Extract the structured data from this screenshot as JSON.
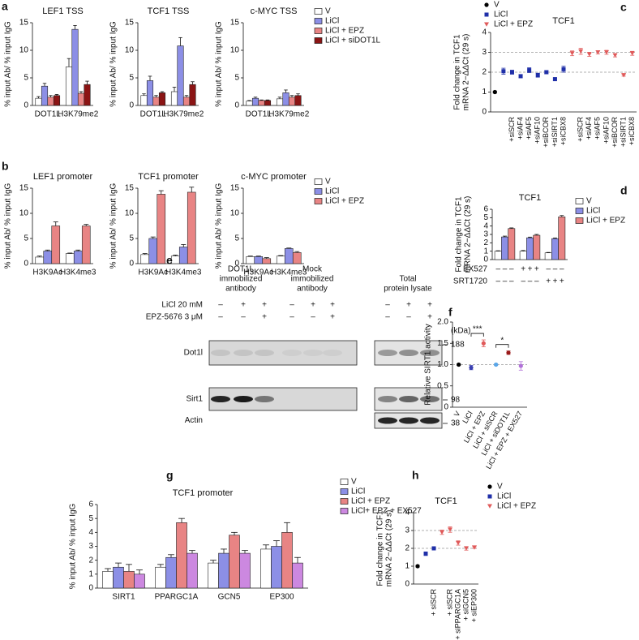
{
  "chart_data": [
    {
      "type": "bar",
      "panel": "a",
      "title": "LEF1 TSS",
      "ylabel": "% input Ab/ % input IgG",
      "ylim": [
        0,
        15
      ],
      "yticks": [
        0,
        5,
        10,
        15
      ],
      "categories": [
        "DOT1L",
        "H3K79me2"
      ],
      "series": [
        {
          "color": "#ffffff",
          "values": [
            1.3,
            7.0
          ],
          "errors": [
            0.3,
            1.5
          ]
        },
        {
          "color": "#8c8fe6",
          "values": [
            3.5,
            13.8
          ],
          "errors": [
            0.5,
            0.7
          ]
        },
        {
          "color": "#e88484",
          "values": [
            1.5,
            2.2
          ],
          "errors": [
            0.3,
            0.3
          ]
        },
        {
          "color": "#8b1414",
          "values": [
            1.8,
            3.8
          ],
          "errors": [
            0.2,
            0.6
          ]
        }
      ]
    },
    {
      "type": "bar",
      "title": "TCF1 TSS",
      "ylabel": "% input Ab/ % input IgG",
      "ylim": [
        0,
        15
      ],
      "yticks": [
        0,
        5,
        10,
        15
      ],
      "categories": [
        "DOT1L",
        "H3K79me2"
      ],
      "series": [
        {
          "color": "#ffffff",
          "values": [
            1.8,
            2.5
          ],
          "errors": [
            0.3,
            0.8
          ]
        },
        {
          "color": "#8c8fe6",
          "values": [
            4.5,
            10.8
          ],
          "errors": [
            0.8,
            1.5
          ]
        },
        {
          "color": "#e88484",
          "values": [
            1.5,
            1.5
          ],
          "errors": [
            0.3,
            0.3
          ]
        },
        {
          "color": "#8b1414",
          "values": [
            2.3,
            3.8
          ],
          "errors": [
            0.2,
            0.5
          ]
        }
      ]
    },
    {
      "type": "bar",
      "title": "c-MYC TSS",
      "ylabel": "% input Ab/ % input IgG",
      "ylim": [
        0,
        15
      ],
      "yticks": [
        0,
        5,
        10,
        15
      ],
      "categories": [
        "DOT1L",
        "H3K79me2"
      ],
      "series": [
        {
          "name": "V",
          "color": "#ffffff",
          "values": [
            0.8,
            1.2
          ],
          "errors": [
            0.1,
            0.3
          ]
        },
        {
          "name": "LiCl",
          "color": "#8c8fe6",
          "values": [
            1.3,
            2.3
          ],
          "errors": [
            0.2,
            0.5
          ]
        },
        {
          "name": "LiCl + EPZ",
          "color": "#e88484",
          "values": [
            0.9,
            1.5
          ],
          "errors": [
            0.1,
            0.3
          ]
        },
        {
          "name": "LiCl + siDOT1L",
          "color": "#8b1414",
          "values": [
            0.9,
            1.8
          ],
          "errors": [
            0.1,
            0.3
          ]
        }
      ]
    },
    {
      "type": "bar",
      "panel": "b",
      "title": "LEF1 promoter",
      "ylabel": "% input Ab/ % input IgG",
      "ylim": [
        0,
        15
      ],
      "yticks": [
        0,
        5,
        10,
        15
      ],
      "categories": [
        "H3K9Ac",
        "H3K4me3"
      ],
      "series": [
        {
          "color": "#ffffff",
          "values": [
            1.3,
            2.0
          ],
          "errors": [
            0.2,
            0.1
          ]
        },
        {
          "color": "#8c8fe6",
          "values": [
            2.5,
            2.5
          ],
          "errors": [
            0.2,
            0.2
          ]
        },
        {
          "color": "#e88484",
          "values": [
            7.5,
            7.5
          ],
          "errors": [
            0.8,
            0.3
          ]
        }
      ]
    },
    {
      "type": "bar",
      "title": "TCF1 promoter",
      "ylabel": "% input Ab/ % input IgG",
      "ylim": [
        0,
        15
      ],
      "yticks": [
        0,
        5,
        10,
        15
      ],
      "categories": [
        "H3K9Ac",
        "H3K4me3"
      ],
      "series": [
        {
          "color": "#ffffff",
          "values": [
            1.8,
            1.5
          ],
          "errors": [
            0.2,
            0.2
          ]
        },
        {
          "color": "#8c8fe6",
          "values": [
            5.0,
            3.3
          ],
          "errors": [
            0.3,
            0.5
          ]
        },
        {
          "color": "#e88484",
          "values": [
            13.8,
            14.2
          ],
          "errors": [
            0.7,
            1.0
          ]
        }
      ]
    },
    {
      "type": "bar",
      "title": "c-MYC promoter",
      "ylabel": "% input Ab/ % input IgG",
      "ylim": [
        0,
        15
      ],
      "yticks": [
        0,
        5,
        10,
        15
      ],
      "categories": [
        "H3K9Ac",
        "H3K4me3"
      ],
      "series": [
        {
          "name": "V",
          "color": "#ffffff",
          "values": [
            1.4,
            1.5
          ],
          "errors": [
            0.1,
            0.1
          ]
        },
        {
          "name": "LiCl",
          "color": "#8c8fe6",
          "values": [
            1.4,
            3.0
          ],
          "errors": [
            0.1,
            0.1
          ]
        },
        {
          "name": "LiCl + EPZ",
          "color": "#e88484",
          "values": [
            1.0,
            2.2
          ],
          "errors": [
            0.2,
            0.2
          ]
        }
      ]
    },
    {
      "type": "dot",
      "panel": "c",
      "title": "TCF1",
      "ylabel": [
        "Fold change in TCF1",
        "mRNA 2−ΔΔCt (29 s)"
      ],
      "ylim": [
        0,
        4
      ],
      "yticks": [
        0,
        1,
        2,
        3,
        4
      ],
      "reference_lines": [
        2,
        3
      ],
      "categories": [
        null,
        null,
        "+siSCR",
        "+siAF4",
        "+siAF5",
        "+siAF10",
        "+siBCOR",
        "+siSIRT1",
        "+siCBX8",
        null,
        "+siSCR",
        "+siAF4",
        "+siAF5",
        "+siAF10",
        "+siBCOR",
        "+siSIRT1",
        "+siCBX8"
      ],
      "series": [
        {
          "name": "V",
          "color": "#000000",
          "marker": "circle",
          "values": [
            1.0,
            null,
            null,
            null,
            null,
            null,
            null,
            null,
            null,
            null,
            null,
            null,
            null,
            null,
            null,
            null,
            null
          ],
          "errors": [
            0.05,
            null,
            null,
            null,
            null,
            null,
            null,
            null,
            null,
            null,
            null,
            null,
            null,
            null,
            null,
            null,
            null
          ]
        },
        {
          "name": "LiCl",
          "color": "#1f2fa8",
          "marker": "square",
          "values": [
            null,
            2.05,
            2.0,
            1.8,
            2.1,
            1.85,
            2.0,
            1.65,
            2.15,
            null,
            null,
            null,
            null,
            null,
            null,
            null,
            null
          ],
          "errors": [
            null,
            0.15,
            0.1,
            0.08,
            0.12,
            0.1,
            0.08,
            0.06,
            0.15,
            null,
            null,
            null,
            null,
            null,
            null,
            null,
            null
          ]
        },
        {
          "name": "LiCl + EPZ",
          "color": "#e05a5a",
          "marker": "triangle",
          "values": [
            null,
            null,
            null,
            null,
            null,
            null,
            null,
            null,
            null,
            2.95,
            3.05,
            2.9,
            3.0,
            3.0,
            2.85,
            1.85,
            2.95
          ],
          "errors": [
            null,
            null,
            null,
            null,
            null,
            null,
            null,
            null,
            null,
            0.12,
            0.15,
            0.1,
            0.08,
            0.1,
            0.08,
            0.05,
            0.1
          ]
        }
      ]
    },
    {
      "type": "bar",
      "panel": "d",
      "title": "TCF1",
      "ylabel": [
        "Fold change in TCF1",
        "mRNA 2−ΔΔCt (29 s)"
      ],
      "ylim": [
        0,
        6
      ],
      "yticks": [
        0,
        1,
        2,
        3,
        4,
        5,
        6
      ],
      "categories": [
        null,
        null,
        null
      ],
      "series": [
        {
          "name": "V",
          "color": "#ffffff",
          "values": [
            1.0,
            1.0,
            0.8
          ],
          "errors": [
            0.05,
            0.08,
            0.05
          ]
        },
        {
          "name": "LiCl",
          "color": "#8c8fe6",
          "values": [
            2.7,
            2.6,
            2.5
          ],
          "errors": [
            0.1,
            0.08,
            0.08
          ]
        },
        {
          "name": "LiCl + EPZ",
          "color": "#e88484",
          "values": [
            3.7,
            2.9,
            5.1
          ],
          "errors": [
            0.08,
            0.1,
            0.15
          ]
        }
      ],
      "conditions": [
        {
          "name": "EX527",
          "values": [
            "–",
            "–",
            "–",
            "+",
            "+",
            "+",
            "–",
            "–",
            "–"
          ]
        },
        {
          "name": "SRT1720",
          "values": [
            "–",
            "–",
            "–",
            "–",
            "–",
            "–",
            "+",
            "+",
            "+"
          ]
        }
      ]
    },
    {
      "type": "blot",
      "panel": "e",
      "groups": [
        [
          "DOT1L",
          "immobilized",
          "antibody"
        ],
        [
          "Mock",
          "immobilized",
          "antibody"
        ],
        [
          "Total",
          "protein lysate"
        ]
      ],
      "treatments": [
        {
          "name": "LiCl 20 mM",
          "signs": [
            "–",
            "+",
            "+",
            "–",
            "+",
            "+",
            "–",
            "+",
            "+"
          ]
        },
        {
          "name": "EPZ-5676 3 μM",
          "signs": [
            "–",
            "–",
            "+",
            "–",
            "–",
            "+",
            "–",
            "–",
            "+"
          ]
        }
      ],
      "unit": "(kDa)",
      "bands": [
        "Dot1l",
        "Sirt1",
        "Actin"
      ],
      "markers": [
        188,
        98,
        38
      ]
    },
    {
      "type": "dot",
      "panel": "f",
      "ylabel": "Relative SIRT1 activity",
      "ylim": [
        0,
        2
      ],
      "yticks": [
        0,
        0.5,
        {
          "value": 1,
          "label": "1.0"
        },
        1.5,
        {
          "value": 2,
          "label": "2.0"
        }
      ],
      "reference_lines": [
        1
      ],
      "categories": [
        "V",
        "LiCl",
        "LiCl + EPZ",
        "LiCl + siSCR",
        "LiCl + siDOT1L",
        "LiCl + EPZ + EX527"
      ],
      "values": [
        1.0,
        0.93,
        1.5,
        1.0,
        1.28,
        0.97
      ],
      "errors": [
        0.02,
        0.05,
        0.08,
        0.02,
        0.04,
        0.1
      ],
      "colors": [
        "#000000",
        "#3a3fb0",
        "#e05a5a",
        "#5aa6e8",
        "#9a1a1a",
        "#b070d8"
      ],
      "annotations": [
        {
          "text": "***",
          "between": [
            1,
            2
          ]
        },
        {
          "text": "*",
          "between": [
            3,
            4
          ]
        }
      ]
    },
    {
      "type": "bar",
      "panel": "g",
      "title": "TCF1 promoter",
      "ylabel": "% input Ab/ % input IgG",
      "ylim": [
        0,
        6
      ],
      "yticks": [
        0,
        1,
        2,
        3,
        4,
        5,
        6
      ],
      "categories": [
        "SIRT1",
        "PPARGC1A",
        "GCN5",
        "EP300"
      ],
      "series": [
        {
          "name": "V",
          "color": "#ffffff",
          "values": [
            1.2,
            1.5,
            1.8,
            2.8
          ],
          "errors": [
            0.2,
            0.2,
            0.2,
            0.3
          ]
        },
        {
          "name": "LiCl",
          "color": "#8c8fe6",
          "values": [
            1.5,
            2.2,
            2.5,
            3.0
          ],
          "errors": [
            0.3,
            0.2,
            0.3,
            0.4
          ]
        },
        {
          "name": "LiCl + EPZ",
          "color": "#e88484",
          "values": [
            1.2,
            4.7,
            3.8,
            4.0
          ],
          "errors": [
            0.5,
            0.3,
            0.2,
            0.7
          ]
        },
        {
          "name": "LiCl+ EPZ + EX527",
          "color": "#cc88e0",
          "values": [
            1.0,
            2.5,
            2.5,
            1.8
          ],
          "errors": [
            0.3,
            0.2,
            0.2,
            0.4
          ]
        }
      ]
    },
    {
      "type": "dot",
      "panel": "h",
      "title": "TCF1",
      "ylabel": [
        "Fold change in TCF1",
        "mRNA 2−ΔΔCt (29 s)"
      ],
      "ylim": [
        0,
        4
      ],
      "yticks": [
        0,
        1,
        2,
        3,
        4
      ],
      "reference_lines": [
        2,
        3
      ],
      "categories": [
        null,
        null,
        "+ siSCR",
        null,
        "+ siSCR",
        "+ siPPARGC1A",
        "+ siGCN5",
        "+ siEP300"
      ],
      "series": [
        {
          "name": "V",
          "color": "#000000",
          "marker": "circle",
          "values": [
            1.0,
            null,
            null,
            null,
            null,
            null,
            null,
            null
          ],
          "errors": [
            0.05,
            null,
            null,
            null,
            null,
            null,
            null,
            null
          ]
        },
        {
          "name": "LiCl",
          "color": "#1f2fa8",
          "marker": "square",
          "values": [
            null,
            1.7,
            2.0,
            null,
            null,
            null,
            null,
            null
          ],
          "errors": [
            null,
            0.1,
            0.05,
            null,
            null,
            null,
            null,
            null
          ]
        },
        {
          "name": "LiCl + EPZ",
          "color": "#e05a5a",
          "marker": "triangle",
          "values": [
            null,
            null,
            null,
            2.9,
            3.05,
            2.3,
            2.0,
            2.05
          ],
          "errors": [
            null,
            null,
            null,
            0.12,
            0.15,
            0.12,
            0.1,
            0.05
          ]
        }
      ]
    }
  ]
}
